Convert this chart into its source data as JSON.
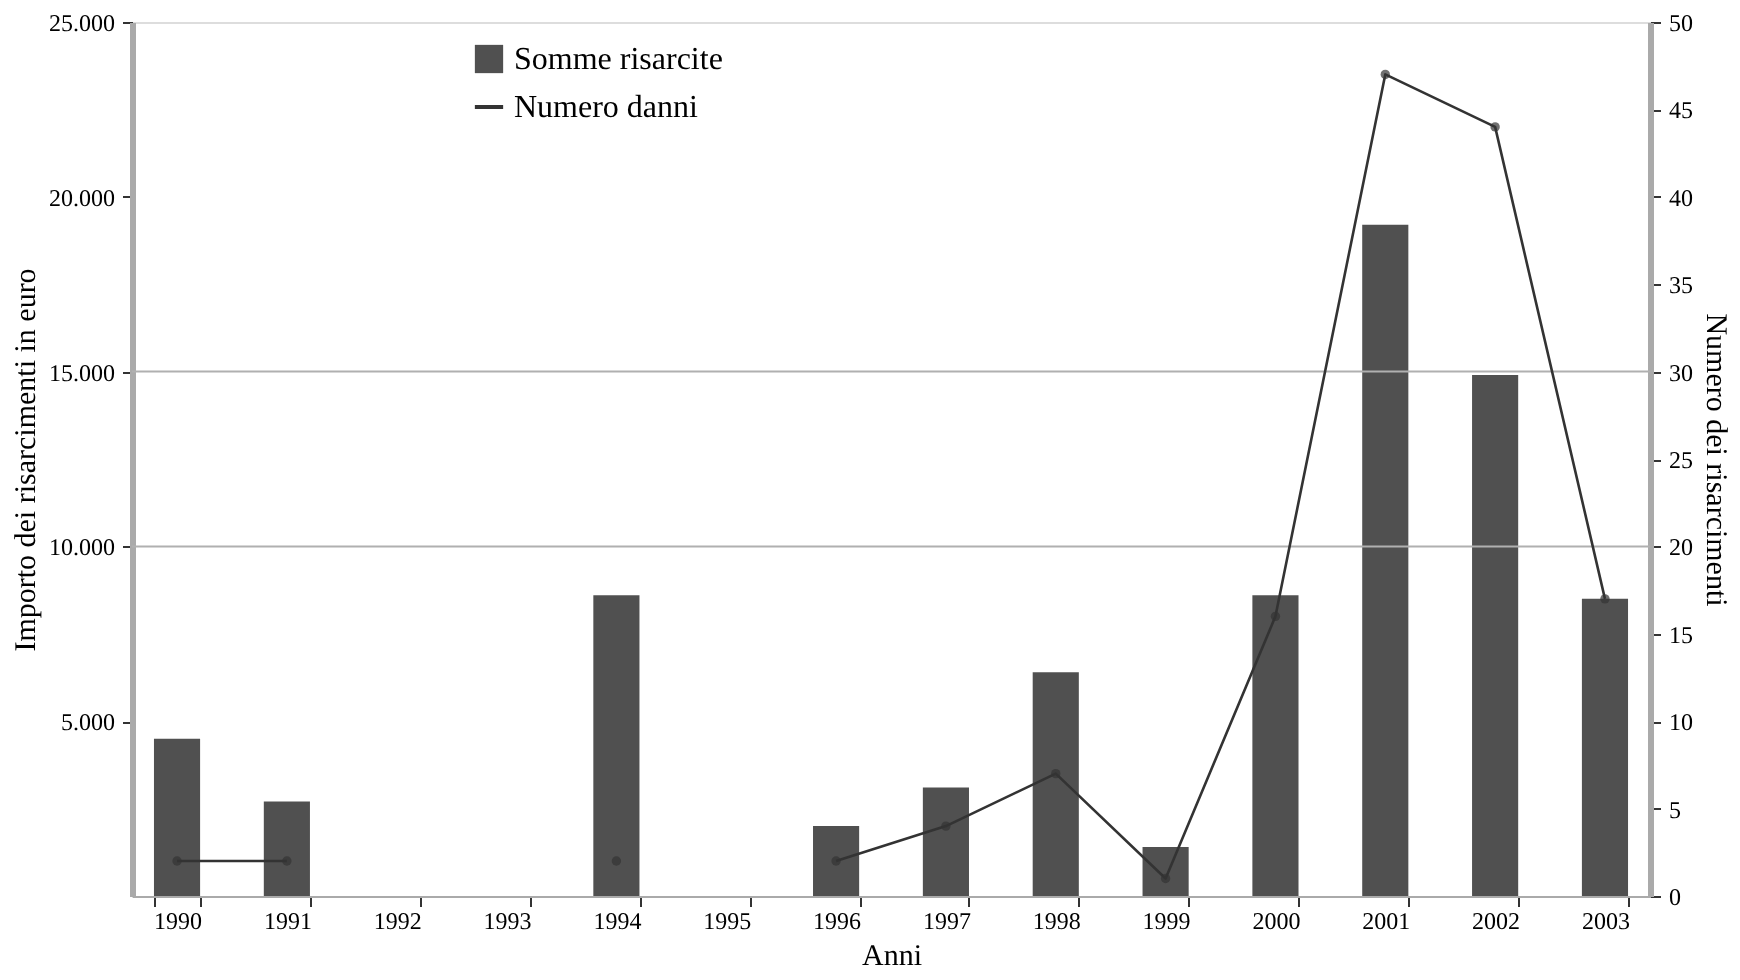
{
  "chart_data": {
    "type": "bar",
    "xlabel": "Anni",
    "ylabel": "Importo dei risarcimenti in euro",
    "y2label": "Numero dei risarcimenti",
    "categories": [
      "1990",
      "1991",
      "1992",
      "1993",
      "1994",
      "1995",
      "1996",
      "1997",
      "1998",
      "1999",
      "2000",
      "2001",
      "2002",
      "2003"
    ],
    "series": [
      {
        "name": "Somme risarcite",
        "color": "#505050",
        "values": [
          4500,
          2700,
          null,
          null,
          8600,
          null,
          2000,
          3100,
          6400,
          1400,
          8600,
          19200,
          14900,
          8500
        ]
      },
      {
        "name": "Numero danni",
        "type": "line",
        "axis": "y2",
        "color": "#333333",
        "marker": "circle",
        "values": [
          2,
          2,
          null,
          null,
          2,
          null,
          2,
          4,
          7,
          1,
          16,
          47,
          44,
          17
        ]
      }
    ],
    "ylim": [
      0,
      25000
    ],
    "yticks": [
      {
        "value": 5000,
        "label": "5.000"
      },
      {
        "value": 10000,
        "label": "10.000"
      },
      {
        "value": 15000,
        "label": "15.000"
      },
      {
        "value": 20000,
        "label": "20.000"
      },
      {
        "value": 25000,
        "label": "25.000"
      }
    ],
    "y2lim": [
      0,
      50
    ],
    "y2ticks": [
      0,
      5,
      10,
      15,
      20,
      25,
      30,
      35,
      40,
      45,
      50
    ],
    "ref_lines": [
      {
        "axis": "y",
        "value": 10000,
        "color": "#b0b0b0"
      },
      {
        "axis": "y",
        "value": 15000,
        "color": "#b0b0b0"
      }
    ],
    "legend": "top left"
  }
}
